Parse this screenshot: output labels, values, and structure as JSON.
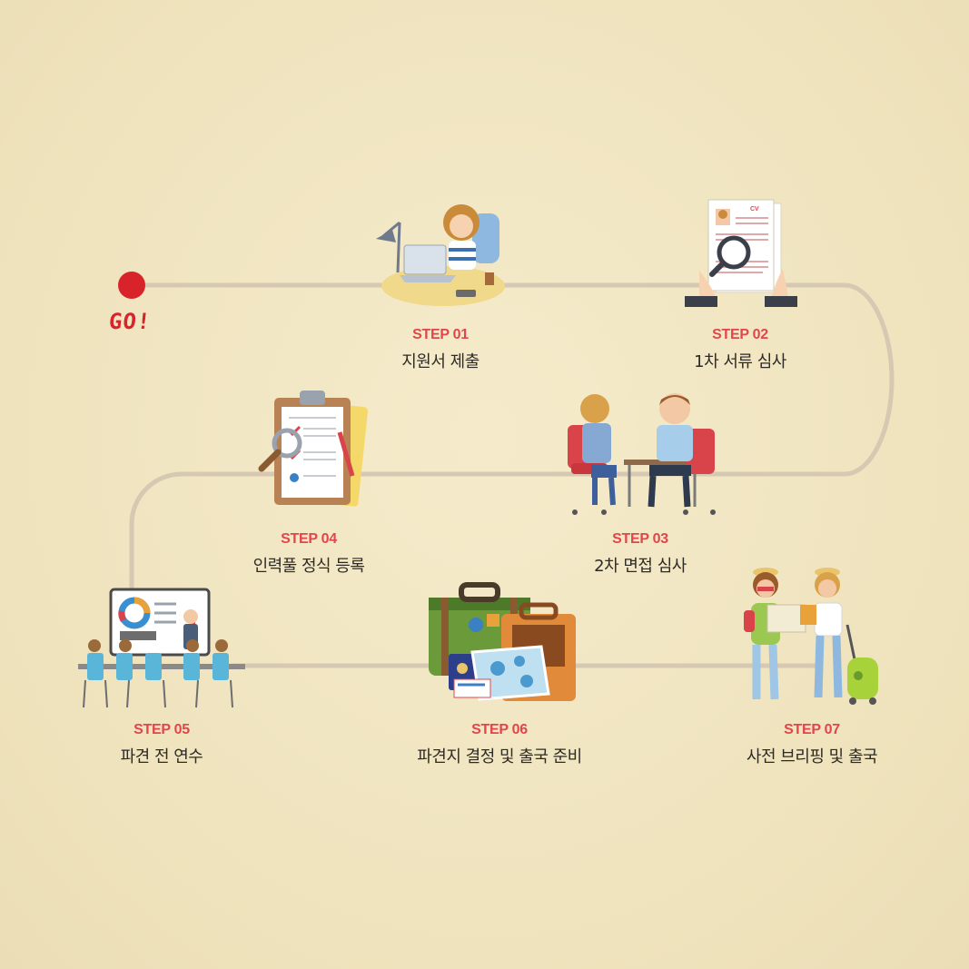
{
  "start": {
    "label": "GO!"
  },
  "steps": [
    {
      "number": "STEP 01",
      "title": "지원서 제출",
      "illustration": "woman-laptop-icon"
    },
    {
      "number": "STEP 02",
      "title": "1차 서류 심사",
      "illustration": "cv-magnifier-icon"
    },
    {
      "number": "STEP 03",
      "title": "2차 면접 심사",
      "illustration": "interview-icon"
    },
    {
      "number": "STEP 04",
      "title": "인력풀 정식 등록",
      "illustration": "clipboard-icon"
    },
    {
      "number": "STEP 05",
      "title": "파견 전 연수",
      "illustration": "training-presentation-icon"
    },
    {
      "number": "STEP 06",
      "title": "파견지 결정 및 출국 준비",
      "illustration": "suitcase-map-icon"
    },
    {
      "number": "STEP 07",
      "title": "사전 브리핑 및 출국",
      "illustration": "travelers-icon"
    }
  ],
  "colors": {
    "accent": "#e0464c",
    "path": "#d6c8b2",
    "go_dot": "#d8232a",
    "text": "#2e2a26"
  }
}
